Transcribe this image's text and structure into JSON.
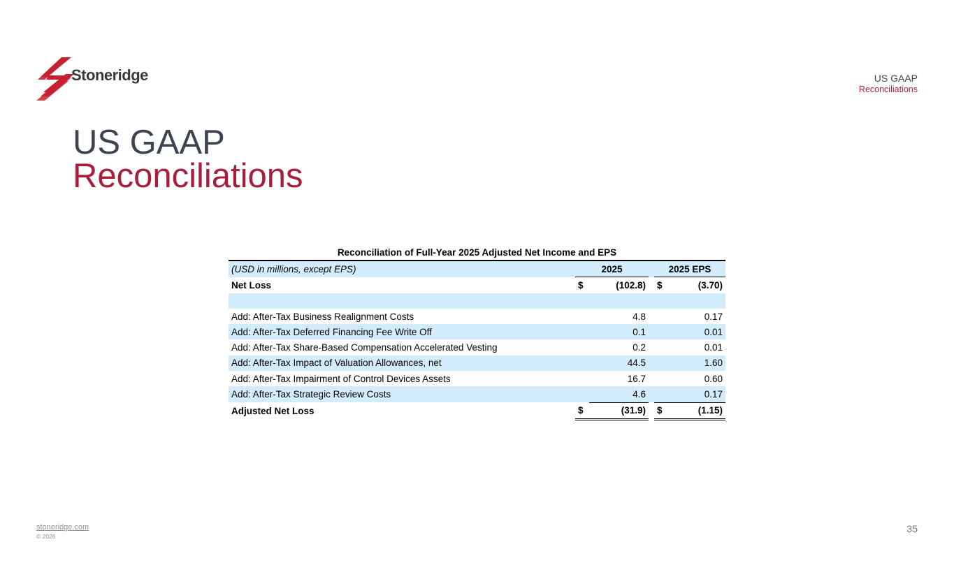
{
  "brand": {
    "name": "Stoneridge",
    "accent_color": "#a81e3a",
    "dark_color": "#3b4450"
  },
  "corner": {
    "line1": "US GAAP",
    "line2": "Reconciliations"
  },
  "title": {
    "line1": "US GAAP",
    "line2": "Reconciliations"
  },
  "table": {
    "caption": "Reconciliation of Full-Year 2025 Adjusted Net Income and EPS",
    "header": {
      "label": "(USD in millions, except EPS)",
      "col1": "2025",
      "col2": "2025 EPS"
    },
    "net_loss": {
      "label": "Net Loss",
      "cur1": "$",
      "v1": "(102.8)",
      "cur2": "$",
      "v2": "(3.70)"
    },
    "rows": [
      {
        "label": "Add: After-Tax Business Realignment Costs",
        "v1": "4.8",
        "v2": "0.17"
      },
      {
        "label": "Add: After-Tax Deferred Financing Fee Write Off",
        "v1": "0.1",
        "v2": "0.01"
      },
      {
        "label": "Add: After-Tax Share-Based Compensation Accelerated Vesting",
        "v1": "0.2",
        "v2": "0.01"
      },
      {
        "label": "Add: After-Tax Impact of Valuation Allowances, net",
        "v1": "44.5",
        "v2": "1.60"
      },
      {
        "label": "Add: After-Tax Impairment of Control Devices Assets",
        "v1": "16.7",
        "v2": "0.60"
      },
      {
        "label": "Add: After-Tax Strategic Review Costs",
        "v1": "4.6",
        "v2": "0.17"
      }
    ],
    "adjusted": {
      "label": "Adjusted Net Loss",
      "cur1": "$",
      "v1": "(31.9)",
      "cur2": "$",
      "v2": "(1.15)"
    }
  },
  "footer": {
    "link": "stoneridge.com",
    "copyright": "© 2026",
    "page_number": "35"
  }
}
